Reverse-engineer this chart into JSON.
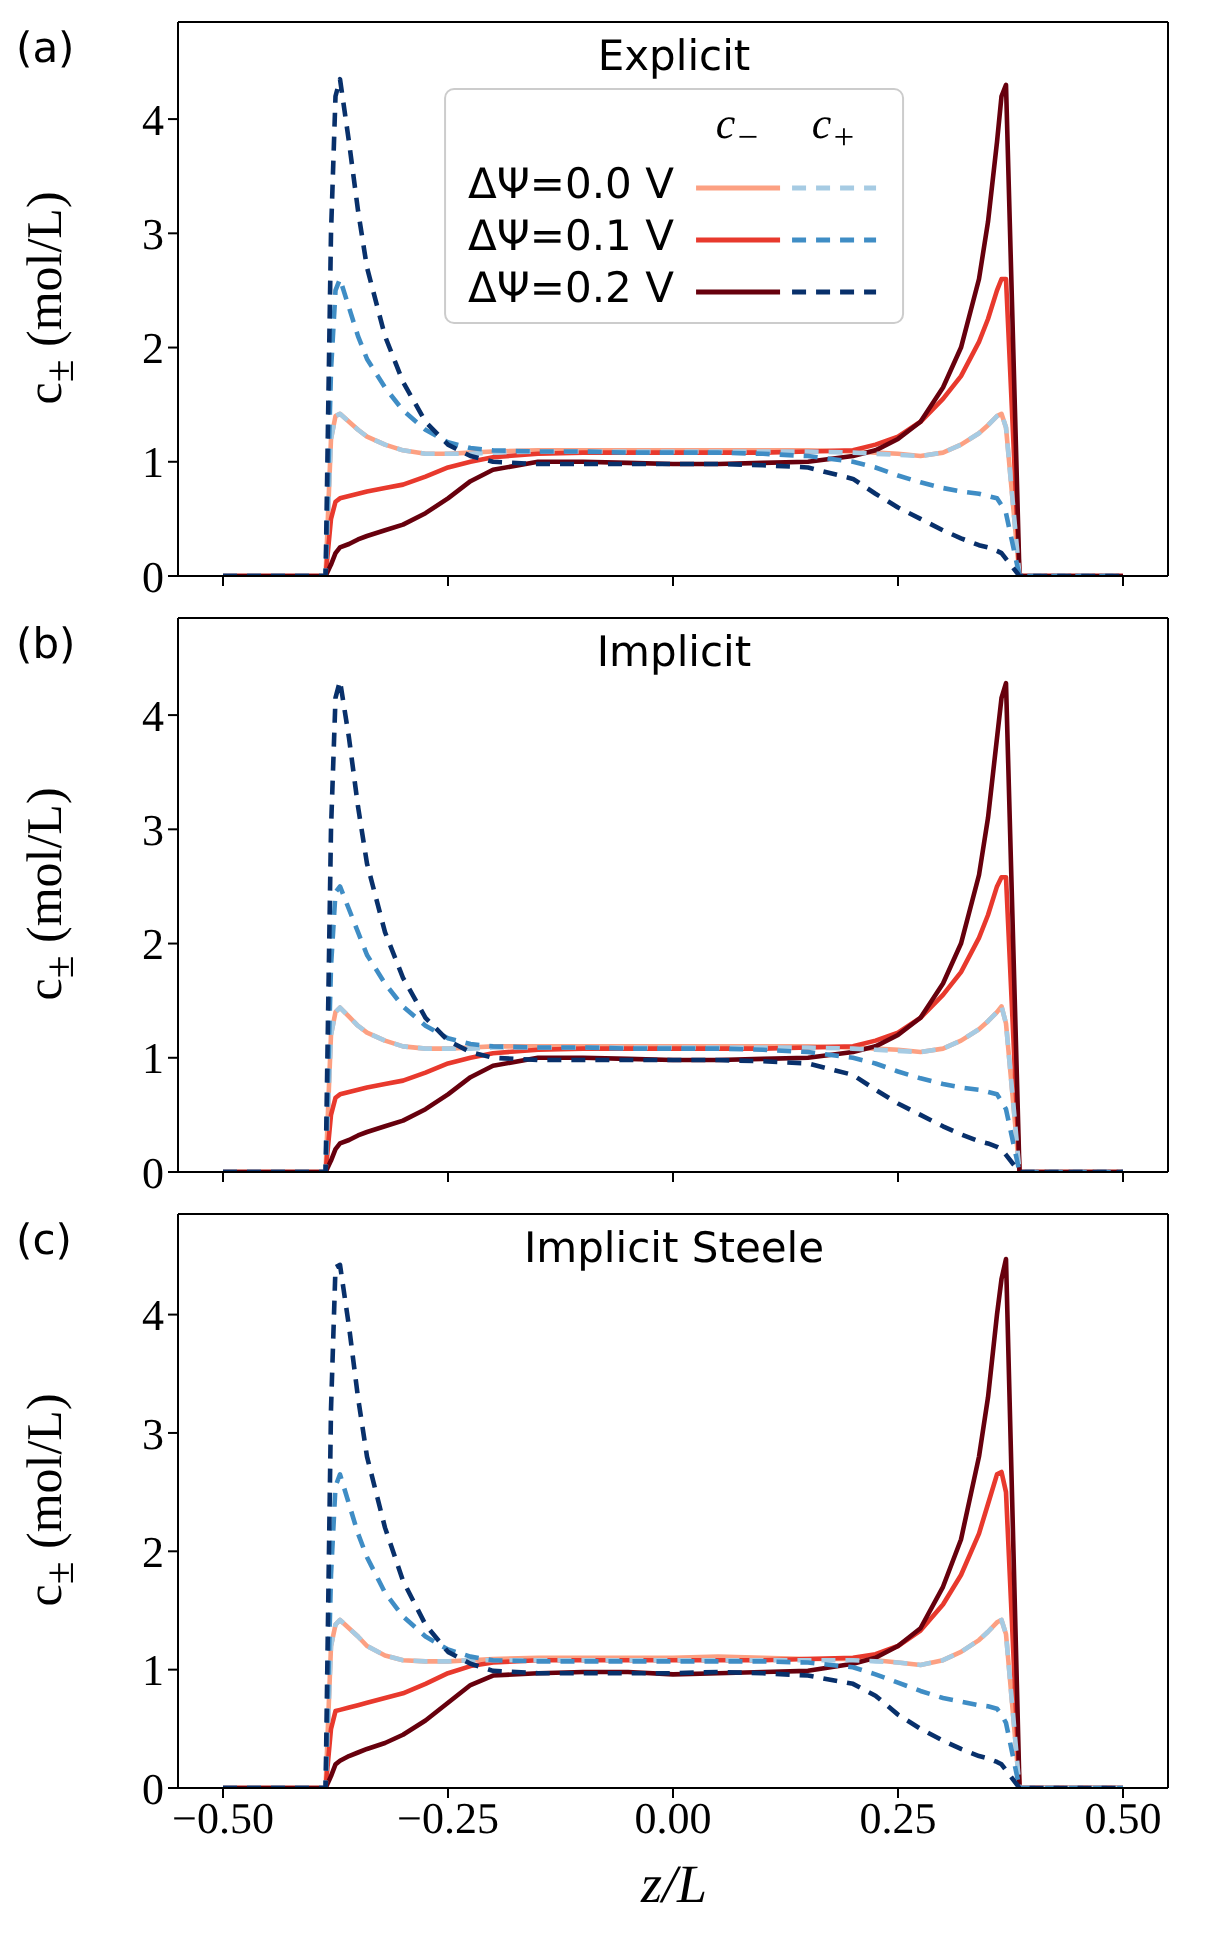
{
  "chart_data": [
    {
      "type": "line",
      "title": "Explicit",
      "ylabel": "c$_{±}$ (mol/L)",
      "annotations": [
        "(a)",
        "c$_{−}$",
        "c$_{+}$"
      ],
      "legend": "top",
      "tick_labels": "y",
      "xlim": [
        -0.55,
        0.55
      ],
      "xticks": [
        -0.5,
        -0.25,
        0,
        0.25,
        0.5
      ],
      "ylim": [
        0,
        4.85
      ],
      "yticks": [
        0,
        1,
        2,
        3,
        4
      ],
      "x": [
        -0.5,
        -0.386,
        -0.38,
        -0.375,
        -0.37,
        -0.36,
        -0.35,
        -0.34,
        -0.32,
        -0.3,
        -0.275,
        -0.25,
        -0.225,
        -0.2,
        -0.15,
        -0.1,
        -0.05,
        0,
        0.05,
        0.1,
        0.15,
        0.2,
        0.225,
        0.25,
        0.275,
        0.3,
        0.32,
        0.34,
        0.35,
        0.36,
        0.365,
        0.37,
        0.385,
        0.5
      ],
      "series": [
        {
          "name": "ΔΨ=0.0 V",
          "color": "#fca082",
          "line_style": "solid",
          "values": [
            0,
            0,
            1.2,
            1.4,
            1.42,
            1.35,
            1.28,
            1.22,
            1.15,
            1.1,
            1.07,
            1.07,
            1.08,
            1.09,
            1.1,
            1.1,
            1.1,
            1.1,
            1.1,
            1.1,
            1.1,
            1.09,
            1.08,
            1.07,
            1.05,
            1.08,
            1.15,
            1.25,
            1.32,
            1.4,
            1.42,
            1.3,
            0,
            0
          ]
        },
        {
          "name": "ΔΨ=0.1 V",
          "color": "#e8392d",
          "line_style": "solid",
          "values": [
            0,
            0,
            0.5,
            0.65,
            0.68,
            0.7,
            0.72,
            0.74,
            0.77,
            0.8,
            0.87,
            0.95,
            1.0,
            1.04,
            1.07,
            1.08,
            1.08,
            1.08,
            1.08,
            1.08,
            1.09,
            1.1,
            1.15,
            1.22,
            1.35,
            1.55,
            1.75,
            2.05,
            2.25,
            2.5,
            2.6,
            2.6,
            0,
            0
          ]
        },
        {
          "name": "ΔΨ=0.2 V",
          "color": "#67000d",
          "line_style": "solid",
          "values": [
            0,
            0,
            0.1,
            0.2,
            0.25,
            0.28,
            0.32,
            0.35,
            0.4,
            0.45,
            0.55,
            0.68,
            0.83,
            0.93,
            1.0,
            1.0,
            0.99,
            0.98,
            0.98,
            0.99,
            1.0,
            1.05,
            1.1,
            1.2,
            1.35,
            1.65,
            2.0,
            2.6,
            3.1,
            3.8,
            4.2,
            4.3,
            0,
            0
          ]
        },
        {
          "color": "#a6cbe3",
          "line_style": "dashed",
          "values": [
            0,
            0,
            1.2,
            1.4,
            1.42,
            1.35,
            1.28,
            1.22,
            1.15,
            1.1,
            1.07,
            1.07,
            1.07,
            1.08,
            1.09,
            1.09,
            1.09,
            1.09,
            1.09,
            1.09,
            1.09,
            1.08,
            1.07,
            1.06,
            1.05,
            1.08,
            1.15,
            1.25,
            1.32,
            1.4,
            1.42,
            1.3,
            0,
            0
          ]
        },
        {
          "color": "#3f8dc5",
          "line_style": "dashed",
          "values": [
            0,
            0,
            1.8,
            2.5,
            2.6,
            2.35,
            2.1,
            1.9,
            1.65,
            1.45,
            1.28,
            1.17,
            1.12,
            1.1,
            1.09,
            1.09,
            1.08,
            1.08,
            1.08,
            1.07,
            1.05,
            1.0,
            0.95,
            0.88,
            0.82,
            0.77,
            0.74,
            0.72,
            0.7,
            0.68,
            0.62,
            0.55,
            0,
            0
          ]
        },
        {
          "color": "#08306b",
          "line_style": "dashed",
          "values": [
            0,
            0,
            3.0,
            4.2,
            4.35,
            3.8,
            3.2,
            2.7,
            2.1,
            1.7,
            1.35,
            1.15,
            1.05,
            1.0,
            0.98,
            0.98,
            0.98,
            0.98,
            0.98,
            0.97,
            0.95,
            0.85,
            0.72,
            0.6,
            0.5,
            0.4,
            0.33,
            0.27,
            0.25,
            0.22,
            0.2,
            0.15,
            0,
            0
          ]
        }
      ]
    },
    {
      "type": "line",
      "title": "Implicit",
      "ylabel": "c$_{±}$ (mol/L)",
      "annotations": [
        "(b)"
      ],
      "tick_labels": "y",
      "xlim": [
        -0.55,
        0.55
      ],
      "xticks": [
        -0.5,
        -0.25,
        0,
        0.25,
        0.5
      ],
      "ylim": [
        0,
        4.85
      ],
      "yticks": [
        0,
        1,
        2,
        3,
        4
      ],
      "x": [
        -0.5,
        -0.386,
        -0.38,
        -0.375,
        -0.37,
        -0.36,
        -0.35,
        -0.34,
        -0.32,
        -0.3,
        -0.275,
        -0.25,
        -0.225,
        -0.2,
        -0.15,
        -0.1,
        -0.05,
        0,
        0.05,
        0.1,
        0.15,
        0.2,
        0.225,
        0.25,
        0.275,
        0.3,
        0.32,
        0.34,
        0.35,
        0.36,
        0.365,
        0.37,
        0.385,
        0.5
      ],
      "series": [
        {
          "color": "#fca082",
          "line_style": "solid",
          "values": [
            0,
            0,
            1.2,
            1.4,
            1.44,
            1.36,
            1.28,
            1.22,
            1.15,
            1.1,
            1.08,
            1.08,
            1.09,
            1.1,
            1.1,
            1.1,
            1.1,
            1.1,
            1.1,
            1.1,
            1.1,
            1.09,
            1.08,
            1.07,
            1.05,
            1.08,
            1.15,
            1.25,
            1.32,
            1.4,
            1.45,
            1.3,
            0,
            0
          ]
        },
        {
          "color": "#e8392d",
          "line_style": "solid",
          "values": [
            0,
            0,
            0.5,
            0.65,
            0.68,
            0.7,
            0.72,
            0.74,
            0.77,
            0.8,
            0.87,
            0.95,
            1.0,
            1.04,
            1.07,
            1.08,
            1.08,
            1.08,
            1.08,
            1.08,
            1.09,
            1.1,
            1.15,
            1.22,
            1.35,
            1.55,
            1.75,
            2.05,
            2.25,
            2.5,
            2.58,
            2.58,
            0,
            0
          ]
        },
        {
          "color": "#67000d",
          "line_style": "solid",
          "values": [
            0,
            0,
            0.1,
            0.2,
            0.25,
            0.28,
            0.32,
            0.35,
            0.4,
            0.45,
            0.55,
            0.68,
            0.83,
            0.93,
            1.0,
            1.0,
            0.99,
            0.98,
            0.98,
            0.99,
            1.0,
            1.05,
            1.1,
            1.2,
            1.35,
            1.65,
            2.0,
            2.6,
            3.1,
            3.8,
            4.15,
            4.28,
            0,
            0
          ]
        },
        {
          "color": "#a6cbe3",
          "line_style": "dashed",
          "values": [
            0,
            0,
            1.2,
            1.4,
            1.44,
            1.36,
            1.28,
            1.22,
            1.15,
            1.1,
            1.08,
            1.08,
            1.08,
            1.09,
            1.09,
            1.09,
            1.09,
            1.09,
            1.09,
            1.09,
            1.09,
            1.08,
            1.07,
            1.06,
            1.05,
            1.08,
            1.15,
            1.25,
            1.32,
            1.4,
            1.45,
            1.3,
            0,
            0
          ]
        },
        {
          "color": "#3f8dc5",
          "line_style": "dashed",
          "values": [
            0,
            0,
            1.8,
            2.45,
            2.5,
            2.3,
            2.1,
            1.9,
            1.65,
            1.45,
            1.28,
            1.17,
            1.12,
            1.1,
            1.09,
            1.09,
            1.08,
            1.08,
            1.08,
            1.07,
            1.05,
            1.0,
            0.95,
            0.88,
            0.82,
            0.77,
            0.74,
            0.72,
            0.7,
            0.68,
            0.62,
            0.55,
            0,
            0
          ]
        },
        {
          "color": "#08306b",
          "line_style": "dashed",
          "values": [
            0,
            0,
            3.0,
            4.15,
            4.3,
            3.8,
            3.2,
            2.7,
            2.1,
            1.7,
            1.35,
            1.15,
            1.05,
            1.0,
            0.98,
            0.98,
            0.98,
            0.98,
            0.98,
            0.97,
            0.95,
            0.85,
            0.72,
            0.6,
            0.5,
            0.4,
            0.33,
            0.27,
            0.25,
            0.22,
            0.2,
            0.15,
            0,
            0
          ]
        }
      ]
    },
    {
      "type": "line",
      "title": "Implicit Steele",
      "ylabel": "c$_{±}$ (mol/L)",
      "xlabel": "z/L",
      "annotations": [
        "(c)"
      ],
      "xlim": [
        -0.55,
        0.55
      ],
      "xticks": [
        {
          "value": -0.5,
          "label": "−0.50"
        },
        {
          "value": -0.25,
          "label": "−0.25"
        },
        {
          "value": 0,
          "label": "0.00"
        },
        {
          "value": 0.25,
          "label": "0.25"
        },
        {
          "value": 0.5,
          "label": "0.50"
        }
      ],
      "ylim": [
        0,
        4.85
      ],
      "yticks": [
        0,
        1,
        2,
        3,
        4
      ],
      "x": [
        -0.5,
        -0.386,
        -0.38,
        -0.375,
        -0.37,
        -0.36,
        -0.35,
        -0.34,
        -0.32,
        -0.3,
        -0.275,
        -0.25,
        -0.225,
        -0.2,
        -0.15,
        -0.1,
        -0.05,
        0,
        0.05,
        0.1,
        0.15,
        0.2,
        0.225,
        0.25,
        0.275,
        0.3,
        0.32,
        0.34,
        0.35,
        0.36,
        0.365,
        0.37,
        0.385,
        0.5
      ],
      "series": [
        {
          "color": "#fca082",
          "line_style": "solid",
          "values": [
            0,
            0,
            1.2,
            1.38,
            1.42,
            1.35,
            1.28,
            1.2,
            1.12,
            1.08,
            1.07,
            1.07,
            1.08,
            1.09,
            1.1,
            1.1,
            1.1,
            1.1,
            1.11,
            1.1,
            1.09,
            1.09,
            1.08,
            1.06,
            1.04,
            1.08,
            1.15,
            1.25,
            1.32,
            1.4,
            1.42,
            1.3,
            0,
            0
          ]
        },
        {
          "color": "#e8392d",
          "line_style": "solid",
          "values": [
            0,
            0,
            0.5,
            0.65,
            0.66,
            0.68,
            0.7,
            0.72,
            0.76,
            0.8,
            0.88,
            0.97,
            1.03,
            1.06,
            1.08,
            1.08,
            1.08,
            1.08,
            1.08,
            1.08,
            1.09,
            1.1,
            1.13,
            1.2,
            1.33,
            1.55,
            1.8,
            2.15,
            2.4,
            2.65,
            2.67,
            2.5,
            0,
            0
          ]
        },
        {
          "color": "#67000d",
          "line_style": "solid",
          "values": [
            0,
            0,
            0.1,
            0.2,
            0.23,
            0.27,
            0.3,
            0.33,
            0.38,
            0.45,
            0.57,
            0.72,
            0.87,
            0.95,
            0.97,
            0.98,
            0.98,
            0.96,
            0.97,
            0.98,
            0.99,
            1.05,
            1.1,
            1.2,
            1.35,
            1.7,
            2.1,
            2.8,
            3.3,
            4.0,
            4.3,
            4.47,
            0,
            0
          ]
        },
        {
          "color": "#a6cbe3",
          "line_style": "dashed",
          "values": [
            0,
            0,
            1.2,
            1.38,
            1.42,
            1.35,
            1.28,
            1.2,
            1.12,
            1.08,
            1.07,
            1.07,
            1.08,
            1.08,
            1.08,
            1.08,
            1.08,
            1.08,
            1.08,
            1.08,
            1.08,
            1.08,
            1.07,
            1.06,
            1.04,
            1.08,
            1.15,
            1.25,
            1.32,
            1.4,
            1.42,
            1.3,
            0,
            0
          ]
        },
        {
          "color": "#3f8dc5",
          "line_style": "dashed",
          "values": [
            0,
            0,
            1.8,
            2.55,
            2.65,
            2.4,
            2.15,
            1.95,
            1.65,
            1.45,
            1.28,
            1.17,
            1.11,
            1.08,
            1.07,
            1.07,
            1.07,
            1.07,
            1.07,
            1.07,
            1.06,
            1.02,
            0.96,
            0.89,
            0.82,
            0.76,
            0.73,
            0.7,
            0.69,
            0.67,
            0.62,
            0.55,
            0,
            0
          ]
        },
        {
          "color": "#08306b",
          "line_style": "dashed",
          "values": [
            0,
            0,
            3.2,
            4.4,
            4.42,
            3.9,
            3.3,
            2.8,
            2.2,
            1.75,
            1.38,
            1.15,
            1.05,
            0.99,
            0.97,
            0.97,
            0.97,
            0.97,
            0.98,
            0.97,
            0.95,
            0.88,
            0.78,
            0.62,
            0.5,
            0.4,
            0.33,
            0.27,
            0.25,
            0.22,
            0.2,
            0.15,
            0,
            0
          ]
        }
      ]
    }
  ]
}
